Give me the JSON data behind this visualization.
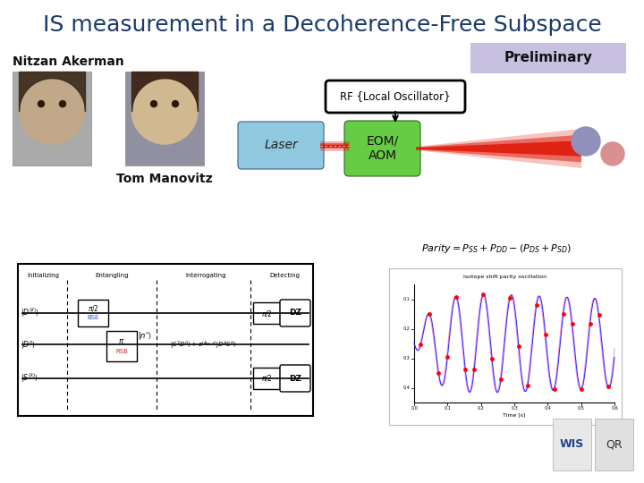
{
  "title": "IS measurement in a Decoherence-Free Subspace",
  "title_color": "#1a3a6a",
  "title_fontsize": 18,
  "slide_bg": "#ffffff",
  "author1": "Nitzan Akerman",
  "author2": "Tom Manovitz",
  "preliminary_text": "Preliminary",
  "preliminary_bg": "#c8c0e0",
  "preliminary_border": "#999999",
  "rf_label": "RF {Local Oscillator}",
  "laser_label": "Laser",
  "laser_bg": "#90c8e0",
  "eom_label": "EOM/\nAOM",
  "eom_bg": "#66cc44",
  "ion1_color": "#9090bb",
  "ion2_color": "#d89090",
  "face1_bg": "#b0a898",
  "face2_bg": "#c0b8a8"
}
